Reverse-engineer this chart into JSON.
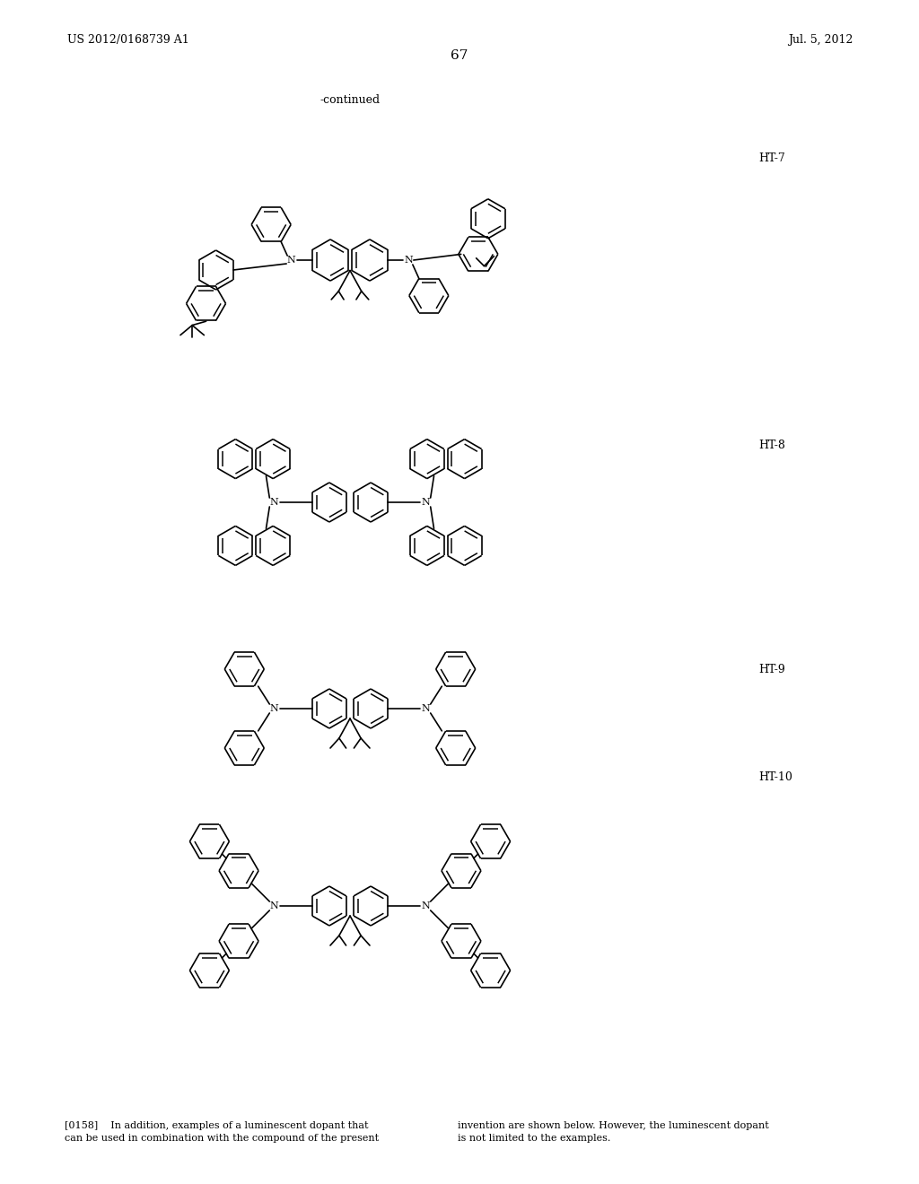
{
  "page_number": "67",
  "header_left": "US 2012/0168739 A1",
  "header_right": "Jul. 5, 2012",
  "continued_label": "-continued",
  "labels": [
    "HT-7",
    "HT-8",
    "HT-9",
    "HT-10"
  ],
  "bg_color": "#ffffff",
  "text_color": "#000000"
}
